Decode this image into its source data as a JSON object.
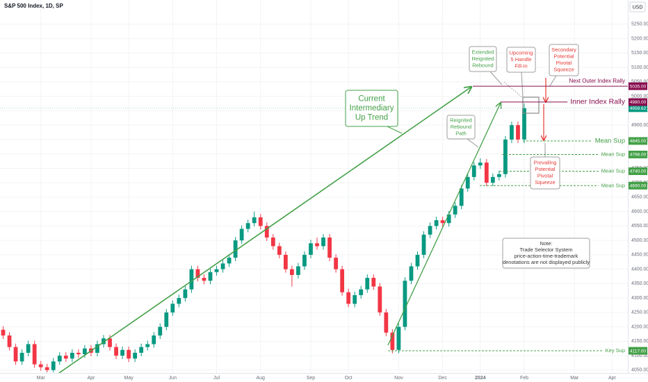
{
  "chart_data": {
    "type": "candlestick",
    "title": "S&P 500 Index, 1D, SP",
    "currency": "USD",
    "grid": true,
    "up_color": "#089981",
    "down_color": "#f23645",
    "ylim": [
      4040,
      5310
    ],
    "yticks": [
      {
        "value": 4050,
        "label": "4050.00"
      },
      {
        "value": 4100,
        "label": "4100.00"
      },
      {
        "value": 4150,
        "label": "4150.00"
      },
      {
        "value": 4200,
        "label": "4200.00"
      },
      {
        "value": 4250,
        "label": "4250.00"
      },
      {
        "value": 4300,
        "label": "4300.00"
      },
      {
        "value": 4350,
        "label": "4350.00"
      },
      {
        "value": 4400,
        "label": "4400.00"
      },
      {
        "value": 4450,
        "label": "4450.00"
      },
      {
        "value": 4500,
        "label": "4500.00"
      },
      {
        "value": 4550,
        "label": "4550.00"
      },
      {
        "value": 4600,
        "label": "4600.00"
      },
      {
        "value": 4650,
        "label": "4650.00"
      },
      {
        "value": 4700,
        "label": "4700.00"
      },
      {
        "value": 4750,
        "label": "4750.00"
      },
      {
        "value": 4800,
        "label": "4800.00"
      },
      {
        "value": 4850,
        "label": "4850.00"
      },
      {
        "value": 4900,
        "label": "4900.00"
      },
      {
        "value": 4950,
        "label": "4950.00"
      },
      {
        "value": 5000,
        "label": "5000.00"
      },
      {
        "value": 5050,
        "label": "5050.00"
      },
      {
        "value": 5100,
        "label": "5100.00"
      },
      {
        "value": 5150,
        "label": "5150.00"
      },
      {
        "value": 5200,
        "label": "5200.00"
      },
      {
        "value": 5250,
        "label": "5250.00"
      }
    ],
    "categories": [
      null,
      null,
      null,
      null,
      null,
      null,
      "Mar",
      null,
      null,
      null,
      null,
      null,
      null,
      null,
      "Apr",
      null,
      null,
      null,
      null,
      null,
      "May",
      null,
      null,
      null,
      null,
      null,
      null,
      "Jun",
      null,
      null,
      null,
      null,
      null,
      null,
      "Jul",
      null,
      null,
      null,
      null,
      null,
      null,
      "Aug",
      null,
      null,
      null,
      null,
      null,
      null,
      null,
      "Sep",
      null,
      null,
      null,
      null,
      null,
      "Oct",
      null,
      null,
      null,
      null,
      null,
      null,
      null,
      "Nov",
      null,
      null,
      null,
      null,
      null,
      null,
      "Dec",
      null,
      null,
      null,
      null,
      null,
      "2024",
      null,
      null,
      null,
      null,
      null,
      null,
      "Feb",
      null,
      null,
      null,
      null,
      null,
      null,
      null,
      "Mar",
      null,
      null,
      null,
      null,
      null,
      "Apr",
      null,
      null
    ],
    "open": [
      4190,
      4170,
      4130,
      4080,
      4110,
      4140,
      4070,
      4060,
      4050,
      4080,
      4100,
      4090,
      4110,
      4105,
      4125,
      4110,
      4140,
      4160,
      4130,
      4100,
      4120,
      4090,
      4110,
      4130,
      4140,
      4170,
      4200,
      4250,
      4280,
      4300,
      4330,
      4400,
      4370,
      4360,
      4390,
      4400,
      4420,
      4440,
      4500,
      4540,
      4560,
      4580,
      4550,
      4510,
      4480,
      4450,
      4400,
      4380,
      4410,
      4450,
      4490,
      4480,
      4510,
      4440,
      4400,
      4320,
      4280,
      4310,
      4330,
      4370,
      4340,
      4250,
      4180,
      4120,
      4200,
      4360,
      4410,
      4450,
      4520,
      4550,
      4570,
      4560,
      4590,
      4620,
      4680,
      4720,
      4760,
      4770,
      4700,
      4720,
      4730,
      4850,
      4900,
      4850,
      null,
      null,
      null,
      null,
      null,
      null,
      null,
      null,
      null,
      null,
      null,
      null,
      null,
      null,
      null,
      null
    ],
    "high": [
      4202,
      4182,
      4142,
      4122,
      4152,
      4152,
      4082,
      4072,
      4092,
      4112,
      4112,
      4122,
      4122,
      4137,
      4137,
      4152,
      4172,
      4172,
      4142,
      4132,
      4132,
      4122,
      4142,
      4152,
      4182,
      4212,
      4262,
      4292,
      4312,
      4342,
      4412,
      4412,
      4382,
      4402,
      4412,
      4432,
      4452,
      4512,
      4552,
      4572,
      4600,
      4592,
      4562,
      4522,
      4492,
      4462,
      4412,
      4422,
      4462,
      4502,
      4510,
      4522,
      4522,
      4452,
      4412,
      4332,
      4322,
      4342,
      4382,
      4382,
      4352,
      4262,
      4192,
      4212,
      4372,
      4422,
      4462,
      4532,
      4562,
      4582,
      4582,
      4602,
      4632,
      4692,
      4732,
      4772,
      4785,
      4782,
      4732,
      4742,
      4862,
      4912,
      4912,
      4975,
      null,
      null,
      null,
      null,
      null,
      null,
      null,
      null,
      null,
      null,
      null,
      null,
      null,
      null,
      null,
      null
    ],
    "low": [
      4158,
      4118,
      4068,
      4068,
      4098,
      4058,
      4048,
      4042,
      4042,
      4068,
      4078,
      4078,
      4093,
      4093,
      4098,
      4098,
      4128,
      4118,
      4088,
      4088,
      4078,
      4078,
      4098,
      4118,
      4128,
      4158,
      4188,
      4238,
      4268,
      4288,
      4318,
      4358,
      4348,
      4348,
      4378,
      4388,
      4408,
      4428,
      4488,
      4528,
      4548,
      4538,
      4498,
      4468,
      4438,
      4388,
      4340,
      4368,
      4398,
      4438,
      4468,
      4468,
      4428,
      4388,
      4308,
      4268,
      4268,
      4298,
      4318,
      4328,
      4238,
      4168,
      4108,
      4108,
      4188,
      4348,
      4398,
      4438,
      4508,
      4538,
      4548,
      4548,
      4578,
      4608,
      4668,
      4708,
      4748,
      4688,
      4688,
      4708,
      4718,
      4838,
      4838,
      4838,
      null,
      null,
      null,
      null,
      null,
      null,
      null,
      null,
      null,
      null,
      null,
      null,
      null,
      null,
      null,
      null
    ],
    "close": [
      4170,
      4130,
      4080,
      4110,
      4140,
      4070,
      4060,
      4050,
      4080,
      4100,
      4090,
      4110,
      4105,
      4125,
      4110,
      4140,
      4160,
      4130,
      4100,
      4120,
      4090,
      4110,
      4130,
      4140,
      4170,
      4200,
      4250,
      4280,
      4300,
      4330,
      4400,
      4370,
      4360,
      4390,
      4400,
      4420,
      4440,
      4500,
      4540,
      4560,
      4580,
      4550,
      4510,
      4480,
      4450,
      4400,
      4380,
      4410,
      4450,
      4490,
      4480,
      4510,
      4440,
      4400,
      4320,
      4280,
      4310,
      4330,
      4370,
      4340,
      4250,
      4180,
      4120,
      4200,
      4360,
      4410,
      4450,
      4520,
      4550,
      4570,
      4560,
      4590,
      4620,
      4680,
      4720,
      4760,
      4770,
      4700,
      4720,
      4730,
      4850,
      4900,
      4850,
      4958.62,
      null,
      null,
      null,
      null,
      null,
      null,
      null,
      null,
      null,
      null,
      null,
      null,
      null,
      null,
      null,
      null
    ],
    "last_price": {
      "value": 4958.62,
      "label": "4958.62",
      "color": "#089981"
    },
    "levels": [
      {
        "label": "Next Outer Index Rally",
        "value": 5035,
        "value_label": "5035.00",
        "color": "#880e4f"
      },
      {
        "label": "Inner Index Rally",
        "value": 4980,
        "value_label": "4980.00",
        "color": "#880e4f"
      },
      {
        "label": "Mean Sup",
        "value": 4845,
        "value_label": "4845.00",
        "color": "#43a047"
      },
      {
        "label": "Mean Sup",
        "value": 4798,
        "value_label": "4798.00",
        "color": "#43a047"
      },
      {
        "label": "Mean Sup",
        "value": 4740,
        "value_label": "4740.00",
        "color": "#43a047"
      },
      {
        "label": "Mean Sup",
        "value": 4690,
        "value_label": "4690.00",
        "color": "#43a047"
      },
      {
        "label": "Key Sup",
        "value": 4117,
        "value_label": "4117.00",
        "color": "#43a047"
      }
    ],
    "annotations": [
      {
        "lines": [
          "Current",
          "Intermediary",
          "Up Trend"
        ],
        "color": "#43a047"
      },
      {
        "lines": [
          "Extended",
          "Reignited",
          "Rebound"
        ],
        "color": "#43a047"
      },
      {
        "lines": [
          "Reignited",
          "Rebound",
          "Path"
        ],
        "color": "#43a047"
      },
      {
        "lines": [
          "Upcoming",
          "5 Handle",
          "Fill-In"
        ],
        "color": "#e53935"
      },
      {
        "lines": [
          "Secondary",
          "Potential",
          "Pivotal",
          "Squeeze"
        ],
        "color": "#e53935"
      },
      {
        "lines": [
          "Prevailing",
          "Potential",
          "Pivotal",
          "Squeeze"
        ],
        "color": "#e53935"
      },
      {
        "lines": [
          "Note:",
          "Trade Selector System",
          "price-action-time-trademark",
          "denotations are not displayed publicly"
        ],
        "color": "#333333"
      }
    ]
  }
}
